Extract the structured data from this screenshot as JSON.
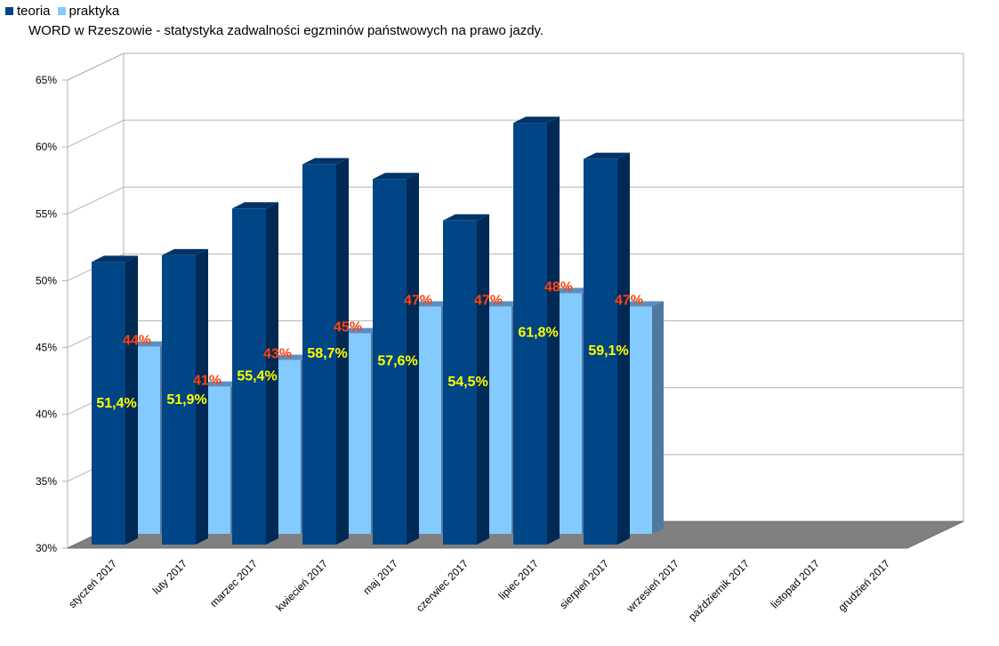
{
  "chart_data": {
    "type": "bar",
    "title": "WORD w Rzeszowie - statystyka zadwalności egzminów państwowych na prawo jazdy.",
    "categories": [
      "styczeń 2017",
      "luty 2017",
      "marzec 2017",
      "kwiecień 2017",
      "maj 2017",
      "czerwiec 2017",
      "lipiec 2017",
      "sierpień 2017",
      "wrzesień 2017",
      "październik 2017",
      "listopad 2017",
      "grudzień 2017"
    ],
    "series": [
      {
        "name": "teoria",
        "color": "#004586",
        "values": [
          51.4,
          51.9,
          55.4,
          58.7,
          57.6,
          54.5,
          61.8,
          59.1,
          null,
          null,
          null,
          null
        ],
        "labels": [
          "51,4%",
          "51,9%",
          "55,4%",
          "58,7%",
          "57,6%",
          "54,5%",
          "61,8%",
          "59,1%",
          "",
          "",
          "",
          ""
        ],
        "label_color": "#ffff00"
      },
      {
        "name": "praktyka",
        "color": "#83caff",
        "values": [
          44,
          41,
          43,
          45,
          47,
          47,
          48,
          47,
          null,
          null,
          null,
          null
        ],
        "labels": [
          "44%",
          "41%",
          "43%",
          "45%",
          "47%",
          "47%",
          "48%",
          "47%",
          "",
          "",
          "",
          ""
        ],
        "label_color": "#ff420e"
      }
    ],
    "ylim": [
      30,
      65
    ],
    "yticks": [
      "30%",
      "35%",
      "40%",
      "45%",
      "50%",
      "55%",
      "60%",
      "65%"
    ],
    "grid": true,
    "legend": "top-left",
    "three_d": true
  }
}
